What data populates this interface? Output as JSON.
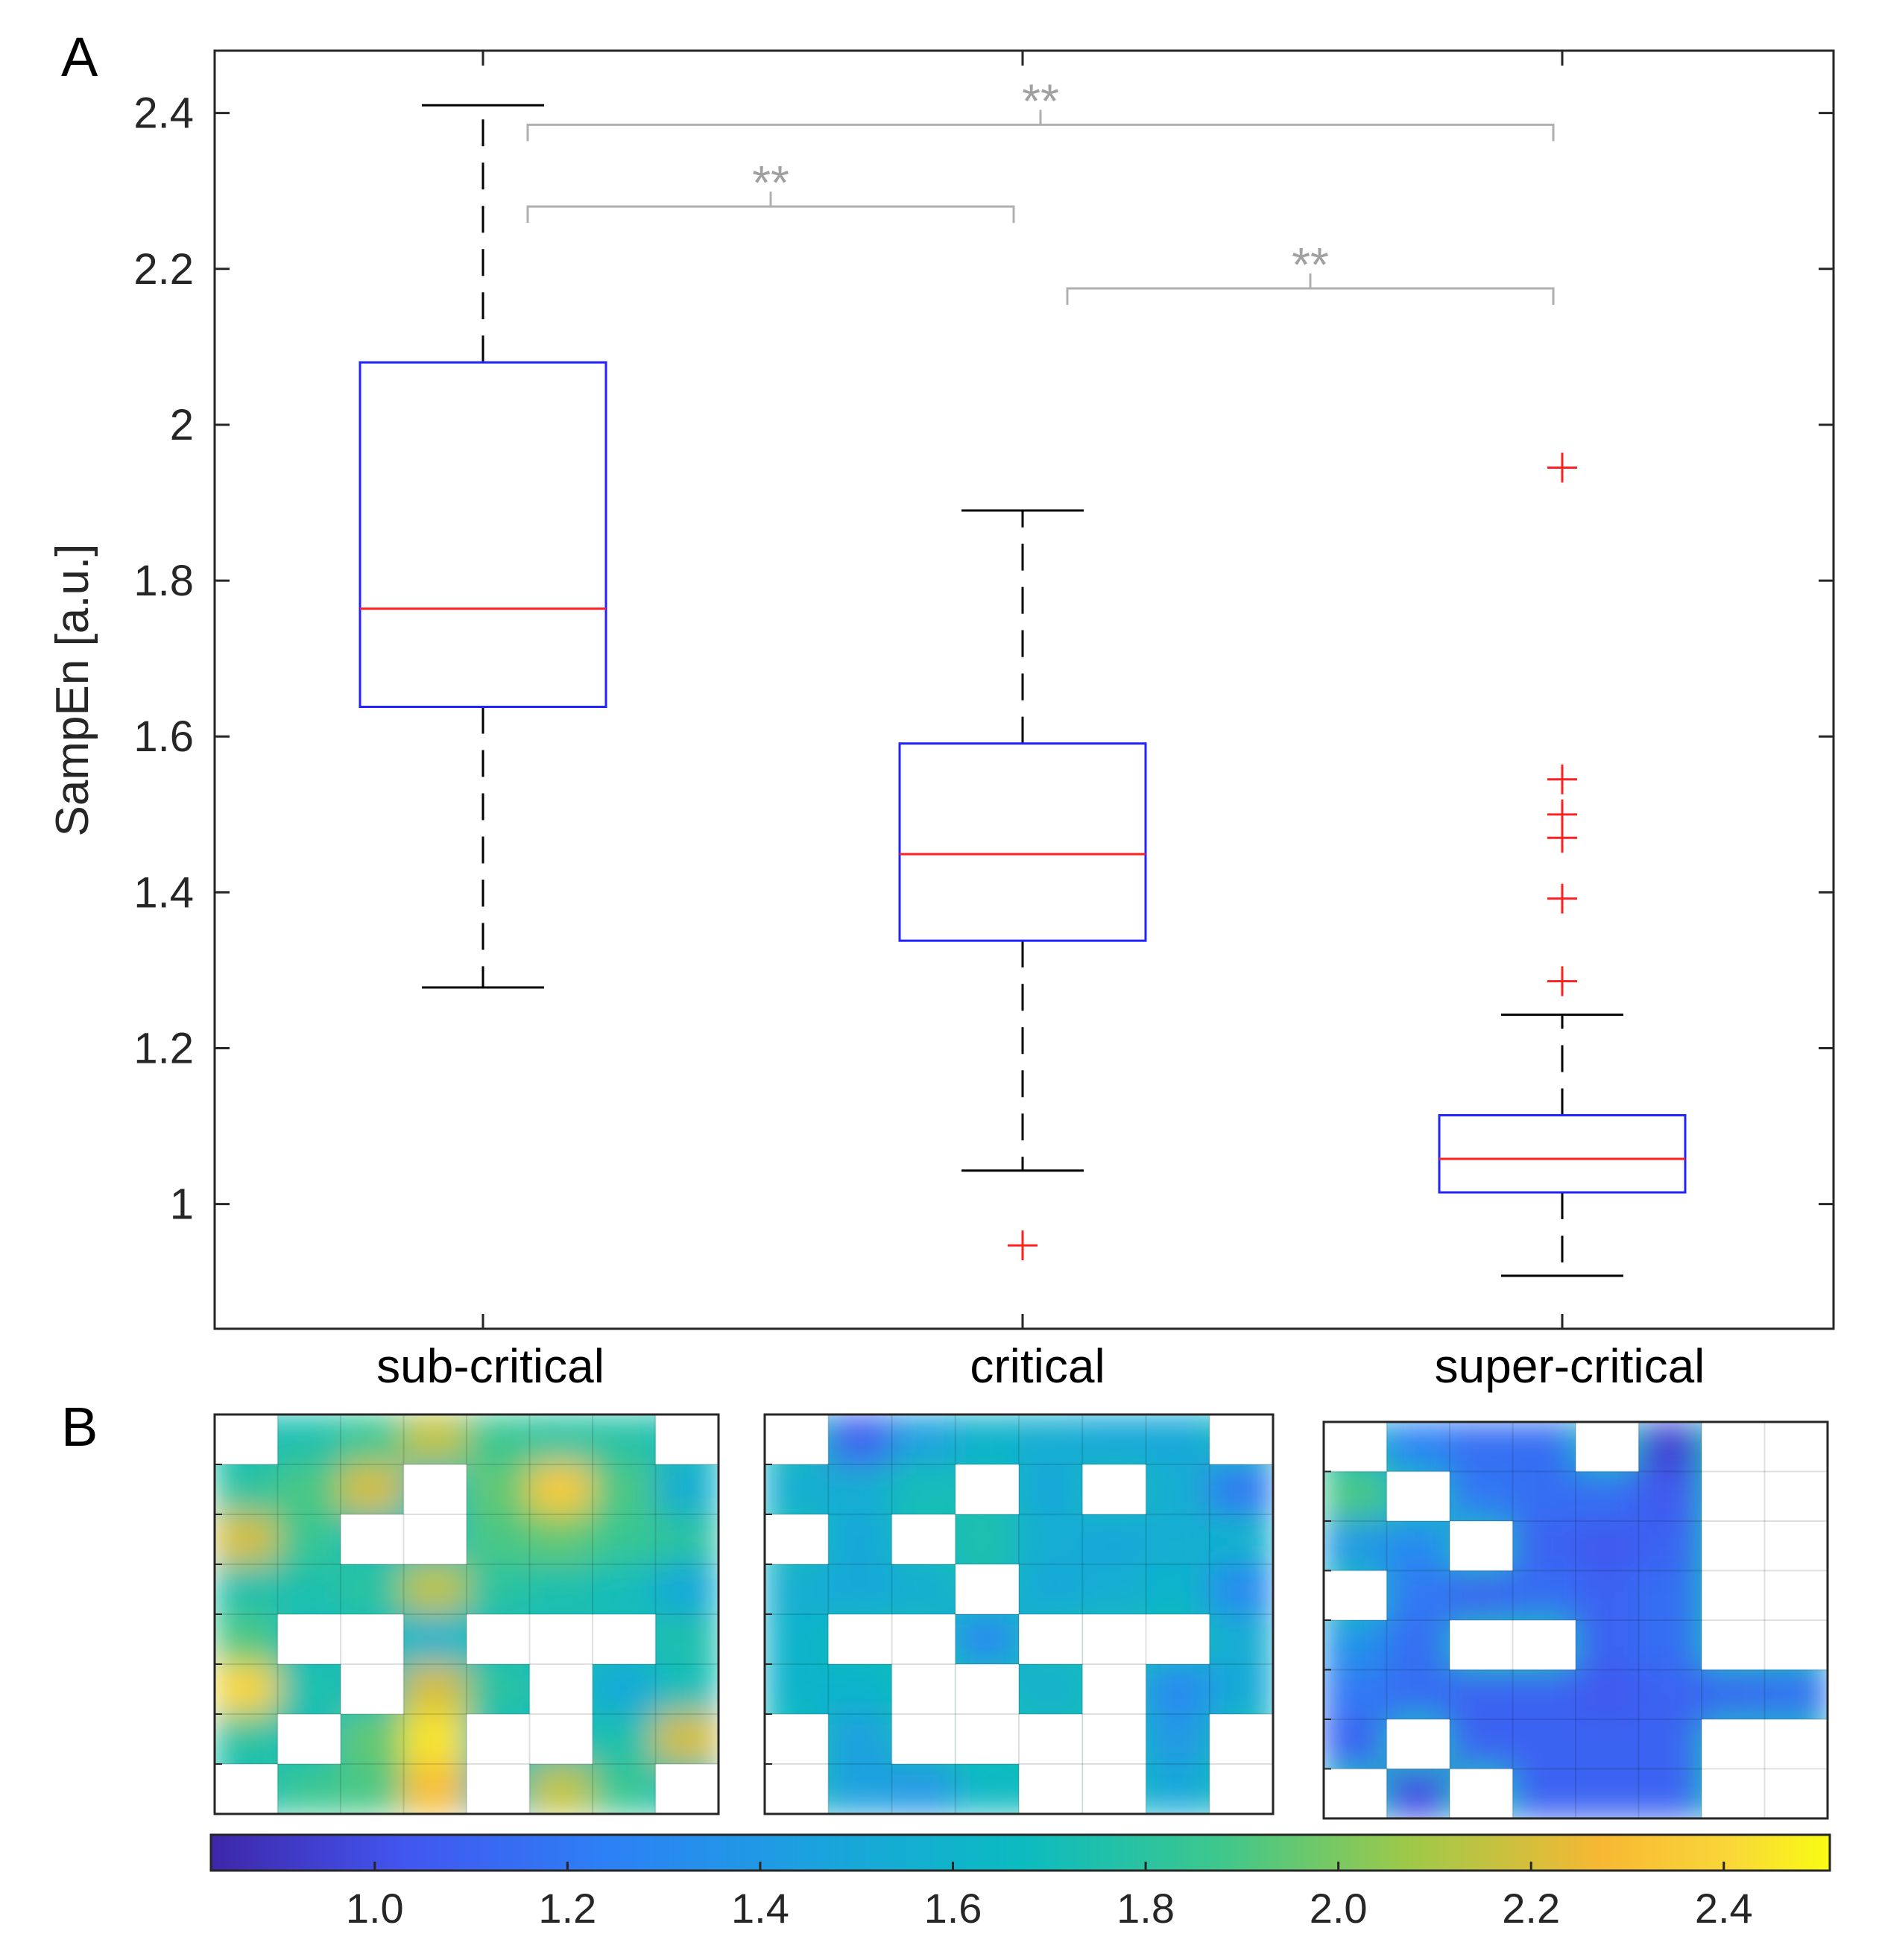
{
  "panel_labels": {
    "a": "A",
    "b": "B"
  },
  "colors": {
    "box": "#2323ff",
    "median": "#ff2020",
    "whisker": "#000000",
    "outlier": "#ff2020",
    "bracket": "#b0b0b0",
    "sig_text": "#a0a0a0",
    "axis": "#262626"
  },
  "chart_data": [
    {
      "type": "box",
      "title": "",
      "xlabel": "",
      "ylabel": "SampEn [a.u.]",
      "ylim": [
        0.84,
        2.48
      ],
      "yticks": [
        1,
        1.2,
        1.4,
        1.6,
        1.8,
        2,
        2.2,
        2.4
      ],
      "ytick_labels": [
        "1",
        "1.2",
        "1.4",
        "1.6",
        "1.8",
        "2",
        "2.2",
        "2.4"
      ],
      "categories": [
        "sub-critical",
        "critical",
        "super-critical"
      ],
      "boxes": [
        {
          "name": "sub-critical",
          "whisker_low": 1.278,
          "q1": 1.638,
          "median": 1.764,
          "q3": 2.08,
          "whisker_high": 2.41,
          "outliers": []
        },
        {
          "name": "critical",
          "whisker_low": 1.043,
          "q1": 1.338,
          "median": 1.449,
          "q3": 1.591,
          "whisker_high": 1.89,
          "outliers": [
            0.947
          ]
        },
        {
          "name": "super-critical",
          "whisker_low": 0.908,
          "q1": 1.015,
          "median": 1.058,
          "q3": 1.114,
          "whisker_high": 1.243,
          "outliers": [
            1.286,
            1.392,
            1.47,
            1.5,
            1.545,
            1.945
          ]
        }
      ],
      "significance": [
        {
          "from": 0,
          "to": 2,
          "label": "**",
          "level": 2.385
        },
        {
          "from": 0,
          "to": 1,
          "label": "**",
          "level": 2.28
        },
        {
          "from": 1,
          "to": 2,
          "label": "**",
          "level": 2.175
        }
      ]
    },
    {
      "type": "heatmap",
      "colorbar": {
        "min": 0.83,
        "max": 2.51,
        "ticks": [
          1.0,
          1.2,
          1.4,
          1.6,
          1.8,
          2.0,
          2.2,
          2.4
        ],
        "tick_labels": [
          "1.0",
          "1.2",
          "1.4",
          "1.6",
          "1.8",
          "2.0",
          "2.2",
          "2.4"
        ]
      },
      "maps": [
        {
          "name": "sub-critical",
          "values": [
            [
              null,
              1.75,
              1.85,
              2.15,
              1.85,
              1.8,
              1.78,
              null
            ],
            [
              1.8,
              1.9,
              2.2,
              null,
              1.95,
              2.35,
              1.9,
              1.55
            ],
            [
              2.2,
              1.85,
              null,
              null,
              1.9,
              1.95,
              1.85,
              1.8
            ],
            [
              1.75,
              1.75,
              1.8,
              2.15,
              1.8,
              1.75,
              1.7,
              1.5
            ],
            [
              1.9,
              null,
              null,
              1.6,
              null,
              null,
              null,
              1.75
            ],
            [
              2.4,
              1.75,
              null,
              2.2,
              1.8,
              null,
              1.5,
              1.7
            ],
            [
              1.8,
              null,
              1.95,
              2.45,
              null,
              null,
              1.75,
              2.2
            ],
            [
              null,
              1.85,
              1.9,
              2.3,
              null,
              2.15,
              1.85,
              null
            ]
          ]
        },
        {
          "name": "critical",
          "values": [
            [
              null,
              1.08,
              1.45,
              1.6,
              1.55,
              1.5,
              1.5,
              null
            ],
            [
              1.55,
              1.55,
              1.7,
              null,
              1.5,
              null,
              1.55,
              1.2
            ],
            [
              null,
              1.5,
              null,
              1.75,
              1.55,
              1.5,
              1.55,
              1.6
            ],
            [
              1.55,
              1.5,
              1.55,
              null,
              1.5,
              1.55,
              1.6,
              1.3
            ],
            [
              1.6,
              null,
              null,
              1.3,
              null,
              null,
              null,
              1.55
            ],
            [
              1.6,
              1.6,
              null,
              null,
              1.58,
              null,
              1.3,
              1.5
            ],
            [
              null,
              1.45,
              null,
              null,
              null,
              null,
              1.4,
              null
            ],
            [
              null,
              1.45,
              1.4,
              1.65,
              null,
              null,
              1.5,
              null
            ]
          ]
        },
        {
          "name": "super-critical",
          "values": [
            [
              null,
              1.25,
              1.15,
              1.15,
              null,
              0.95,
              null,
              null
            ],
            [
              1.9,
              null,
              1.2,
              1.15,
              1.15,
              1.05,
              null,
              null
            ],
            [
              1.4,
              1.3,
              null,
              1.1,
              1.05,
              1.1,
              null,
              null
            ],
            [
              null,
              1.2,
              1.1,
              1.15,
              1.1,
              1.15,
              null,
              null
            ],
            [
              1.35,
              1.15,
              null,
              null,
              1.1,
              1.15,
              null,
              null
            ],
            [
              1.2,
              1.15,
              1.1,
              1.1,
              1.05,
              1.1,
              1.12,
              1.15
            ],
            [
              1.1,
              null,
              1.1,
              1.1,
              1.1,
              1.1,
              null,
              null
            ],
            [
              null,
              1.0,
              null,
              1.1,
              1.1,
              1.1,
              null,
              null
            ]
          ]
        }
      ]
    }
  ]
}
